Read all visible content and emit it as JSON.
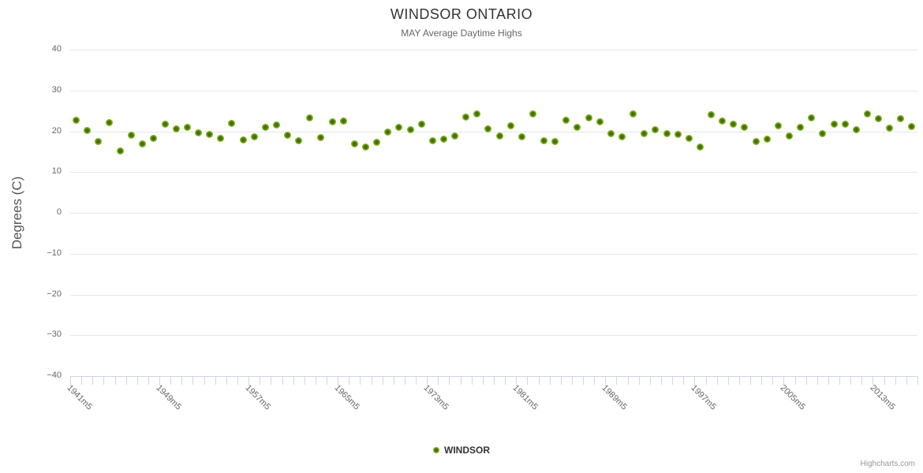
{
  "chart": {
    "title": "WINDSOR ONTARIO",
    "subtitle": "MAY Average Daytime Highs",
    "credits": "Highcharts.com"
  },
  "legend": {
    "items": [
      {
        "label": "WINDSOR",
        "marker_icon": "circle-marker-icon",
        "color": "#7eb41e"
      }
    ]
  },
  "chart_data": {
    "type": "scatter",
    "title": "WINDSOR ONTARIO",
    "subtitle": "MAY Average Daytime Highs",
    "xlabel": "",
    "ylabel": "Degrees (C)",
    "ylim": [
      -40,
      40
    ],
    "yticks": [
      40,
      30,
      20,
      10,
      0,
      -10,
      -20,
      -30,
      -40
    ],
    "grid": true,
    "legend_position": "bottom-center",
    "x_label_step": 8,
    "visible_x_labels": [
      "1941m5",
      "1949m5",
      "1957m5",
      "1965m5",
      "1973m5",
      "1981m5",
      "1989m5",
      "1997m5",
      "2005m5",
      "2013m5"
    ],
    "series": [
      {
        "name": "WINDSOR",
        "color": "#7eb41e",
        "categories": [
          "1941m5",
          "1942m5",
          "1943m5",
          "1944m5",
          "1945m5",
          "1946m5",
          "1947m5",
          "1948m5",
          "1949m5",
          "1950m5",
          "1951m5",
          "1952m5",
          "1953m5",
          "1954m5",
          "1955m5",
          "1956m5",
          "1957m5",
          "1958m5",
          "1959m5",
          "1960m5",
          "1961m5",
          "1962m5",
          "1963m5",
          "1964m5",
          "1965m5",
          "1966m5",
          "1967m5",
          "1968m5",
          "1969m5",
          "1970m5",
          "1971m5",
          "1972m5",
          "1973m5",
          "1974m5",
          "1975m5",
          "1976m5",
          "1977m5",
          "1978m5",
          "1979m5",
          "1980m5",
          "1981m5",
          "1982m5",
          "1983m5",
          "1984m5",
          "1985m5",
          "1986m5",
          "1987m5",
          "1988m5",
          "1989m5",
          "1990m5",
          "1991m5",
          "1992m5",
          "1993m5",
          "1994m5",
          "1995m5",
          "1996m5",
          "1997m5",
          "1998m5",
          "1999m5",
          "2000m5",
          "2001m5",
          "2002m5",
          "2003m5",
          "2004m5",
          "2005m5",
          "2006m5",
          "2007m5",
          "2008m5",
          "2009m5",
          "2010m5",
          "2011m5",
          "2012m5",
          "2013m5",
          "2014m5",
          "2015m5",
          "2016m5"
        ],
        "values": [
          22.8,
          20.2,
          17.4,
          22.2,
          15.2,
          19.0,
          16.9,
          18.3,
          21.7,
          20.5,
          21.0,
          19.6,
          19.2,
          18.2,
          21.9,
          17.9,
          18.7,
          21.0,
          21.5,
          19.0,
          17.7,
          23.2,
          18.5,
          22.4,
          22.5,
          17.0,
          16.2,
          17.3,
          19.9,
          21.0,
          20.4,
          21.7,
          17.7,
          18.1,
          18.8,
          23.4,
          24.3,
          20.6,
          18.9,
          21.3,
          18.7,
          24.3,
          17.6,
          17.5,
          22.8,
          20.9,
          23.2,
          22.4,
          19.4,
          18.6,
          24.3,
          19.5,
          20.3,
          19.5,
          19.3,
          18.2,
          16.1,
          24.1,
          22.5,
          21.8,
          21.0,
          17.4,
          18.1,
          21.3,
          18.8,
          21.0,
          23.2,
          19.4,
          21.7,
          21.8,
          20.4,
          24.2,
          23.1,
          20.8,
          23.0,
          21.2
        ]
      }
    ]
  }
}
